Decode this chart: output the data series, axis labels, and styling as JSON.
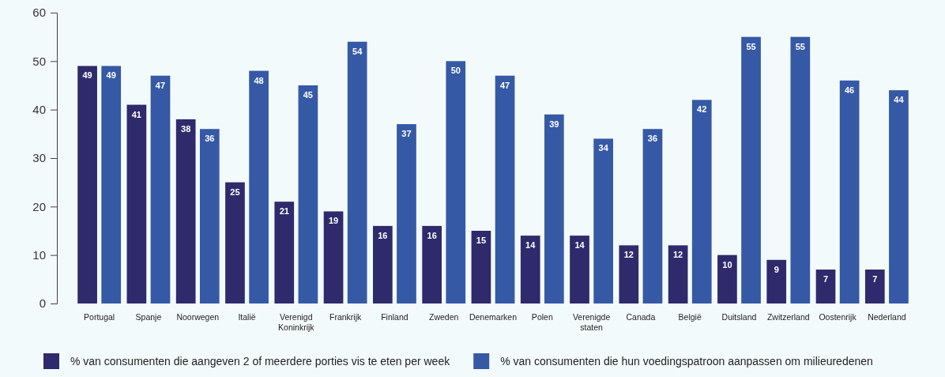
{
  "chart_data": {
    "type": "bar",
    "categories": [
      "Portugal",
      "Spanje",
      "Noorwegen",
      "Italië",
      "Verenigd Koninkrijk",
      "Frankrijk",
      "Finland",
      "Zweden",
      "Denemarken",
      "Polen",
      "Verenigde staten",
      "Canada",
      "België",
      "Duitsland",
      "Zwitzerland",
      "Oostenrijk",
      "Nederland"
    ],
    "series": [
      {
        "name": "% van consumenten die aangeven 2 of meerdere porties vis te eten per week",
        "color": "#2e2a6b",
        "values": [
          49,
          41,
          38,
          25,
          21,
          19,
          16,
          16,
          15,
          14,
          14,
          12,
          12,
          10,
          9,
          7,
          7
        ]
      },
      {
        "name": "% van consumenten die hun voedingspatroon aanpassen om milieuredenen",
        "color": "#3659a6",
        "values": [
          49,
          47,
          36,
          48,
          45,
          54,
          37,
          50,
          47,
          39,
          34,
          36,
          42,
          55,
          55,
          46,
          44
        ]
      }
    ],
    "ylim": [
      0,
      60
    ],
    "yticks": [
      0,
      10,
      20,
      30,
      40,
      50,
      60
    ],
    "data_labels": true,
    "legend": "bottom",
    "grid": false
  }
}
